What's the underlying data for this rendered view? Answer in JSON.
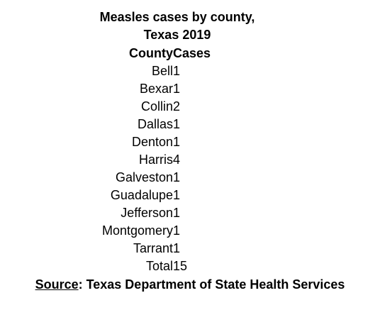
{
  "chart_data": {
    "type": "table",
    "title_line1": "Measles cases by county,",
    "title_line2": "Texas 2019",
    "columns": [
      "County",
      "Cases"
    ],
    "rows": [
      {
        "county": "Bell",
        "cases": "1"
      },
      {
        "county": "Bexar",
        "cases": "1"
      },
      {
        "county": "Collin",
        "cases": "2"
      },
      {
        "county": "Dallas",
        "cases": "1"
      },
      {
        "county": "Denton",
        "cases": "1"
      },
      {
        "county": "Harris",
        "cases": "4"
      },
      {
        "county": "Galveston",
        "cases": "1"
      },
      {
        "county": "Guadalupe",
        "cases": "1"
      },
      {
        "county": "Jefferson",
        "cases": "1"
      },
      {
        "county": "Montgomery",
        "cases": "1"
      },
      {
        "county": "Tarrant",
        "cases": "1"
      },
      {
        "county": "Total",
        "cases": "15"
      }
    ],
    "source_label": "Source",
    "source_text": ": Texas Department of State Health Services"
  }
}
